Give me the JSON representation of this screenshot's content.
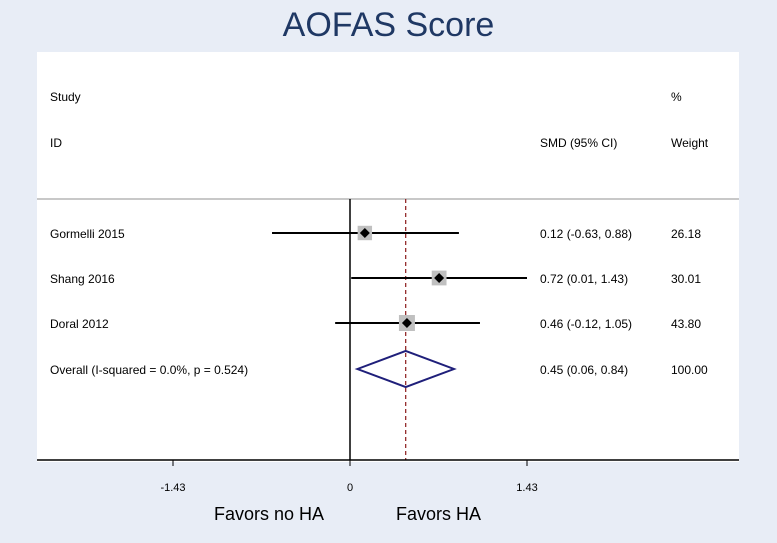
{
  "chart_data": {
    "type": "forest",
    "title": "AOFAS Score",
    "header": {
      "study_line1": "Study",
      "study_line2": "ID",
      "effect_label": "SMD (95% CI)",
      "weight_line1": "%",
      "weight_line2": "Weight"
    },
    "studies": [
      {
        "label": "Gormelli 2015",
        "est": 0.12,
        "lo": -0.63,
        "hi": 0.88,
        "ci_text": "0.12 (-0.63, 0.88)",
        "weight": 26.18,
        "weight_text": "26.18"
      },
      {
        "label": "Shang 2016",
        "est": 0.72,
        "lo": 0.01,
        "hi": 1.43,
        "ci_text": "0.72 (0.01, 1.43)",
        "weight": 30.01,
        "weight_text": "30.01"
      },
      {
        "label": "Doral 2012",
        "est": 0.46,
        "lo": -0.12,
        "hi": 1.05,
        "ci_text": "0.46 (-0.12, 1.05)",
        "weight": 43.8,
        "weight_text": "43.80"
      }
    ],
    "overall": {
      "label": "Overall  (I-squared = 0.0%, p = 0.524)",
      "est": 0.45,
      "lo": 0.06,
      "hi": 0.84,
      "ci_text": "0.45 (0.06, 0.84)",
      "weight_text": "100.00"
    },
    "x_ticks": [
      -1.43,
      0,
      1.43
    ],
    "x_tick_labels": [
      "-1.43",
      "0",
      "1.43"
    ],
    "xlim": [
      -1.43,
      1.43
    ],
    "favors_left": "Favors no HA",
    "favors_right": "Favors HA",
    "colors": {
      "background": "#e8edf6",
      "title": "#1f3864",
      "diamond": "#1f1f7a",
      "overall_line": "#8b1a1a",
      "weight_box": "#c0c0c0",
      "marker": "#000000"
    }
  }
}
